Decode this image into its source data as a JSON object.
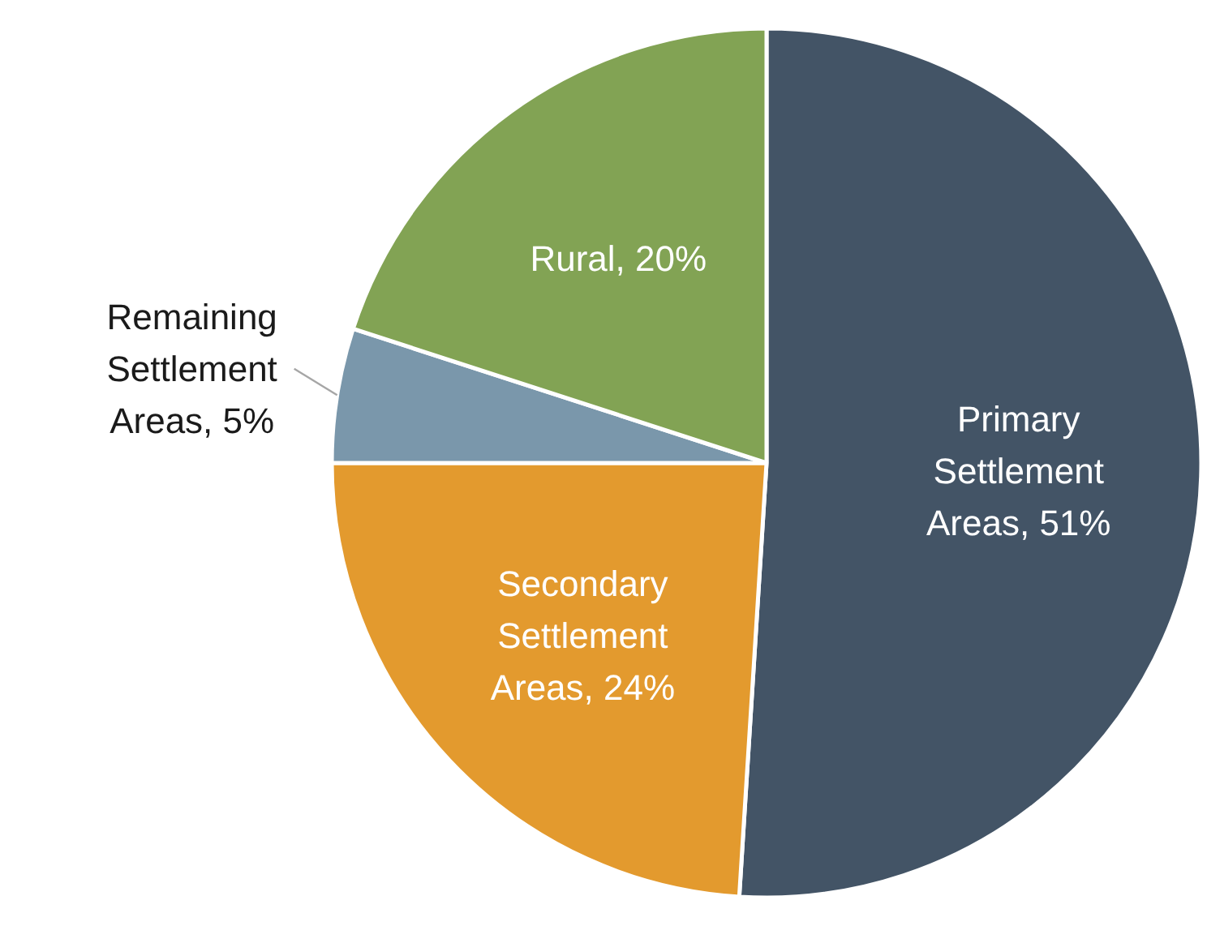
{
  "chart_data": {
    "type": "pie",
    "categories": [
      "Primary Settlement Areas",
      "Secondary Settlement Areas",
      "Remaining Settlement Areas",
      "Rural"
    ],
    "values": [
      51,
      24,
      5,
      20
    ],
    "value_labels": [
      "51%",
      "24%",
      "5%",
      "20%"
    ],
    "colors": [
      "#435466",
      "#e39a2e",
      "#7a97ab",
      "#82a354"
    ]
  }
}
